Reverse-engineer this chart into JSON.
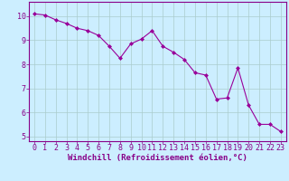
{
  "x": [
    0,
    1,
    2,
    3,
    4,
    5,
    6,
    7,
    8,
    9,
    10,
    11,
    12,
    13,
    14,
    15,
    16,
    17,
    18,
    19,
    20,
    21,
    22,
    23
  ],
  "y": [
    10.1,
    10.05,
    9.85,
    9.7,
    9.5,
    9.4,
    9.2,
    8.75,
    8.25,
    8.85,
    9.05,
    9.4,
    8.75,
    8.5,
    8.2,
    7.65,
    7.55,
    6.55,
    6.6,
    7.85,
    6.3,
    5.5,
    5.5,
    5.2
  ],
  "line_color": "#990099",
  "marker": "D",
  "marker_size": 2.0,
  "bg_color": "#cceeff",
  "grid_color": "#aacccc",
  "xlabel": "Windchill (Refroidissement éolien,°C)",
  "xlim": [
    -0.5,
    23.5
  ],
  "ylim": [
    4.8,
    10.6
  ],
  "yticks": [
    5,
    6,
    7,
    8,
    9,
    10
  ],
  "xticks": [
    0,
    1,
    2,
    3,
    4,
    5,
    6,
    7,
    8,
    9,
    10,
    11,
    12,
    13,
    14,
    15,
    16,
    17,
    18,
    19,
    20,
    21,
    22,
    23
  ],
  "tick_color": "#880088",
  "label_color": "#880088",
  "label_fontsize": 6.5,
  "tick_fontsize": 6.0,
  "axis_color": "#880088",
  "spine_color": "#880088"
}
